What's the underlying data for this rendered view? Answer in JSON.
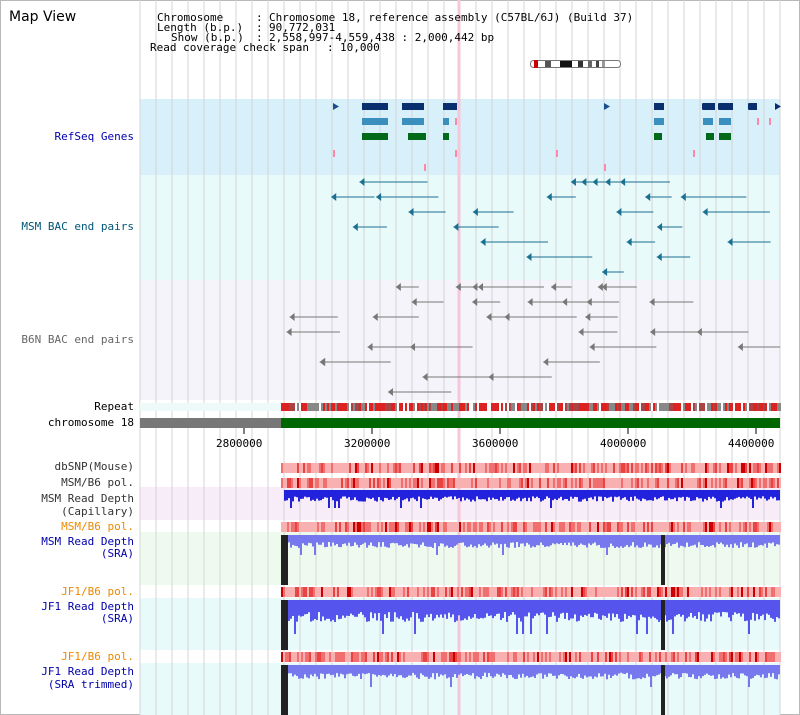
{
  "title": "Map View",
  "info": {
    "chromosome_label": "Chromosome",
    "chromosome_value": "Chromosome 18, reference assembly (C57BL/6J) (Build 37)",
    "length_label": "Length (b.p.)",
    "length_value": "90,772,031",
    "show_label": "Show (b.p.)",
    "show_value": "2,558,997-4,559,438 : 2,000,442 bp",
    "coverage_label": "Read coverage check span",
    "coverage_value": "10,000"
  },
  "tracks": {
    "refseq": "RefSeq Genes",
    "msm_bac": "MSM BAC end pairs",
    "b6n_bac": "B6N BAC end pairs",
    "repeat": "Repeat",
    "chromosome": "chromosome 18",
    "dbsnp": "dbSNP(Mouse)",
    "msm_b6_pol_1": "MSM/B6 pol.",
    "msm_depth_cap_1": "MSM Read Depth",
    "msm_depth_cap_2": "(Capillary)",
    "msm_b6_pol_2": "MSM/B6 pol.",
    "msm_depth_sra_1": "MSM Read Depth",
    "msm_depth_sra_2": "(SRA)",
    "jf1_b6_pol_1": "JF1/B6 pol.",
    "jf1_depth_sra_1": "JF1 Read Depth",
    "jf1_depth_sra_2": "(SRA)",
    "jf1_b6_pol_2": "JF1/B6 pol.",
    "jf1_depth_trim_1": "JF1 Read Depth",
    "jf1_depth_trim_2": "(SRA trimmed)"
  },
  "axis_ticks": [
    "2800000",
    "3200000",
    "3600000",
    "4000000",
    "4400000"
  ],
  "colors": {
    "label_blue": "#0000aa",
    "label_orange": "#ee8800",
    "label_teal": "#005577",
    "label_gray": "#666666",
    "chromosome_green": "#006600",
    "depth_blue": "#3333ee",
    "snp_red": "#ee2222"
  }
}
